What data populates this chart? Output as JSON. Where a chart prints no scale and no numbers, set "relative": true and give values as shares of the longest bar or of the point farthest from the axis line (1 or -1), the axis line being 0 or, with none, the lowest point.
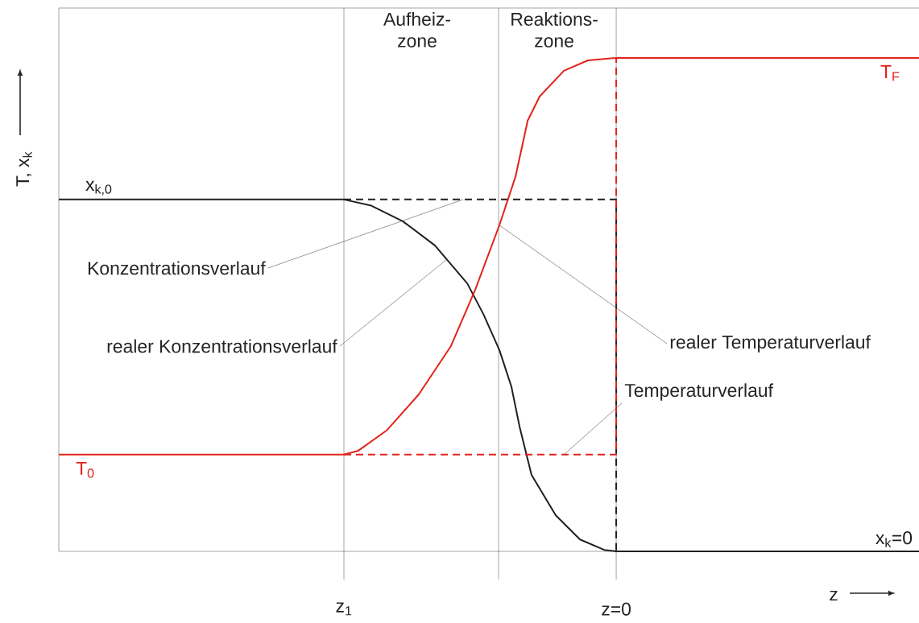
{
  "chart_data": {
    "type": "line",
    "relative": true,
    "xlabel": "z",
    "ylabel": "T, x$_{k}$",
    "xlim": [
      -2.047,
      1.112
    ],
    "xticks": [
      {
        "value": -1,
        "label": "z$_{1}$"
      },
      {
        "value": 0,
        "label": "z=0"
      }
    ],
    "series": [
      {
        "color": "#231f20",
        "line_style": "solid",
        "x": [
          -2.047,
          -1,
          -0.902,
          -0.784,
          -0.666,
          -0.547,
          -0.488,
          -0.429,
          -0.385,
          -0.355,
          -0.311,
          -0.222,
          -0.133,
          -0.044,
          0,
          1.112
        ],
        "values": [
          0.713,
          0.713,
          0.701,
          0.669,
          0.62,
          0.543,
          0.481,
          0.408,
          0.334,
          0.253,
          0.155,
          0.073,
          0.024,
          0.003,
          0,
          0
        ]
      },
      {
        "color": "#231f20",
        "line_style": "dashed",
        "x": [
          -1,
          0,
          0
        ],
        "values": [
          0.713,
          0.713,
          0
        ]
      },
      {
        "color": "#e2231a",
        "line_style": "solid",
        "x": [
          -2.047,
          -1,
          -0.947,
          -0.843,
          -0.725,
          -0.607,
          -0.518,
          -0.429,
          -0.37,
          -0.325,
          -0.281,
          -0.192,
          -0.104,
          0,
          1.112
        ],
        "values": [
          0.196,
          0.196,
          0.204,
          0.245,
          0.318,
          0.416,
          0.53,
          0.661,
          0.759,
          0.873,
          0.922,
          0.974,
          0.995,
          1,
          1
        ]
      },
      {
        "color": "#e2231a",
        "line_style": "dashed",
        "x": [
          -1,
          0,
          0
        ],
        "values": [
          0.196,
          0.196,
          1
        ]
      }
    ],
    "ref_lines": [
      {
        "axis": "x",
        "value": -1
      },
      {
        "axis": "x",
        "value": -0.432
      },
      {
        "axis": "x",
        "value": 0
      }
    ],
    "annotations": [
      "Aufheiz-zone",
      "Reaktions-zone",
      {
        "text": "x$_{k,0}$",
        "x": -1.9,
        "y": 0.713
      },
      {
        "text": "T$_{0}$",
        "x": -1.95,
        "y": 0.196
      },
      {
        "text": "T$_{F}$",
        "x": 1.006,
        "y": 1
      },
      {
        "text": "x$_{k}$=0",
        "x": 1.02,
        "y": 0
      },
      {
        "text": "realer Konzentrationsverlauf",
        "x": -0.621,
        "y": 0.592
      },
      {
        "text": "Konzentrationsverlauf",
        "x": -0.562,
        "y": 0.713
      },
      {
        "text": "realer Temperaturverlauf",
        "x": -0.429,
        "y": 0.661
      },
      {
        "text": "Temperaturverlauf",
        "x": -0.192,
        "y": 0.196
      }
    ],
    "marker": "none",
    "grid": false
  }
}
